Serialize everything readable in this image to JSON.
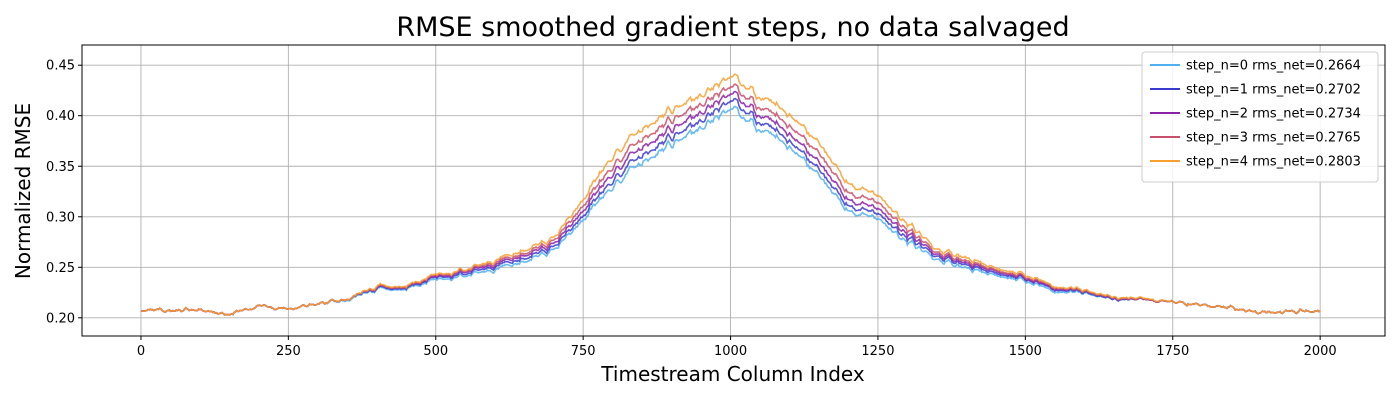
{
  "chart_data": {
    "type": "line",
    "title": "RMSE smoothed gradient steps, no data salvaged",
    "xlabel": "Timestream Column Index",
    "ylabel": "Normalized RMSE",
    "xlim": [
      -100,
      2110
    ],
    "ylim": [
      0.182,
      0.47
    ],
    "xticks": [
      0,
      250,
      500,
      750,
      1000,
      1250,
      1500,
      1750,
      2000
    ],
    "yticks": [
      0.2,
      0.25,
      0.3,
      0.35,
      0.4,
      0.45
    ],
    "xtick_labels": [
      "0",
      "250",
      "500",
      "750",
      "1000",
      "1250",
      "1500",
      "1750",
      "2000"
    ],
    "ytick_labels": [
      "0.20",
      "0.25",
      "0.30",
      "0.35",
      "0.40",
      "0.45"
    ],
    "grid": true,
    "legend_position": "top-right",
    "x": [
      0,
      50,
      100,
      150,
      200,
      250,
      300,
      350,
      400,
      450,
      500,
      550,
      600,
      650,
      700,
      750,
      800,
      850,
      900,
      950,
      1000,
      1050,
      1100,
      1150,
      1200,
      1250,
      1300,
      1350,
      1400,
      1450,
      1500,
      1550,
      1600,
      1650,
      1700,
      1750,
      1800,
      1850,
      1900,
      1950,
      2000
    ],
    "series": [
      {
        "name": "step_n=0 rms_net=0.2664",
        "color": "#4fb0f0",
        "values": [
          0.209,
          0.207,
          0.208,
          0.203,
          0.212,
          0.209,
          0.213,
          0.218,
          0.228,
          0.228,
          0.238,
          0.241,
          0.248,
          0.256,
          0.268,
          0.298,
          0.33,
          0.355,
          0.372,
          0.385,
          0.41,
          0.388,
          0.37,
          0.34,
          0.305,
          0.298,
          0.275,
          0.257,
          0.25,
          0.242,
          0.237,
          0.226,
          0.224,
          0.219,
          0.218,
          0.215,
          0.214,
          0.209,
          0.205,
          0.206,
          0.207
        ]
      },
      {
        "name": "step_n=1 rms_net=0.2702",
        "color": "#3a3acf",
        "values": [
          0.209,
          0.207,
          0.208,
          0.203,
          0.212,
          0.209,
          0.213,
          0.219,
          0.229,
          0.229,
          0.24,
          0.243,
          0.251,
          0.259,
          0.271,
          0.302,
          0.336,
          0.362,
          0.379,
          0.392,
          0.418,
          0.395,
          0.376,
          0.346,
          0.31,
          0.303,
          0.279,
          0.26,
          0.253,
          0.244,
          0.239,
          0.228,
          0.225,
          0.219,
          0.218,
          0.215,
          0.214,
          0.209,
          0.205,
          0.206,
          0.207
        ]
      },
      {
        "name": "step_n=2 rms_net=0.2734",
        "color": "#8a1fa8",
        "values": [
          0.209,
          0.207,
          0.208,
          0.203,
          0.212,
          0.209,
          0.213,
          0.219,
          0.23,
          0.23,
          0.241,
          0.245,
          0.253,
          0.262,
          0.274,
          0.307,
          0.343,
          0.37,
          0.387,
          0.4,
          0.425,
          0.402,
          0.383,
          0.353,
          0.316,
          0.308,
          0.283,
          0.262,
          0.255,
          0.246,
          0.24,
          0.229,
          0.226,
          0.22,
          0.218,
          0.215,
          0.214,
          0.209,
          0.205,
          0.206,
          0.207
        ]
      },
      {
        "name": "step_n=3 rms_net=0.2765",
        "color": "#c8506a",
        "values": [
          0.209,
          0.207,
          0.208,
          0.203,
          0.212,
          0.209,
          0.213,
          0.219,
          0.23,
          0.23,
          0.242,
          0.246,
          0.255,
          0.264,
          0.277,
          0.312,
          0.35,
          0.378,
          0.396,
          0.408,
          0.432,
          0.41,
          0.391,
          0.362,
          0.323,
          0.314,
          0.287,
          0.264,
          0.257,
          0.247,
          0.241,
          0.23,
          0.226,
          0.22,
          0.218,
          0.215,
          0.214,
          0.209,
          0.205,
          0.206,
          0.207
        ]
      },
      {
        "name": "step_n=4 rms_net=0.2803",
        "color": "#f7a030",
        "values": [
          0.209,
          0.207,
          0.208,
          0.203,
          0.212,
          0.209,
          0.213,
          0.219,
          0.231,
          0.231,
          0.243,
          0.247,
          0.257,
          0.267,
          0.28,
          0.318,
          0.36,
          0.388,
          0.406,
          0.417,
          0.442,
          0.42,
          0.402,
          0.372,
          0.332,
          0.321,
          0.293,
          0.267,
          0.26,
          0.249,
          0.243,
          0.231,
          0.227,
          0.221,
          0.219,
          0.215,
          0.214,
          0.209,
          0.205,
          0.206,
          0.207
        ]
      }
    ]
  }
}
